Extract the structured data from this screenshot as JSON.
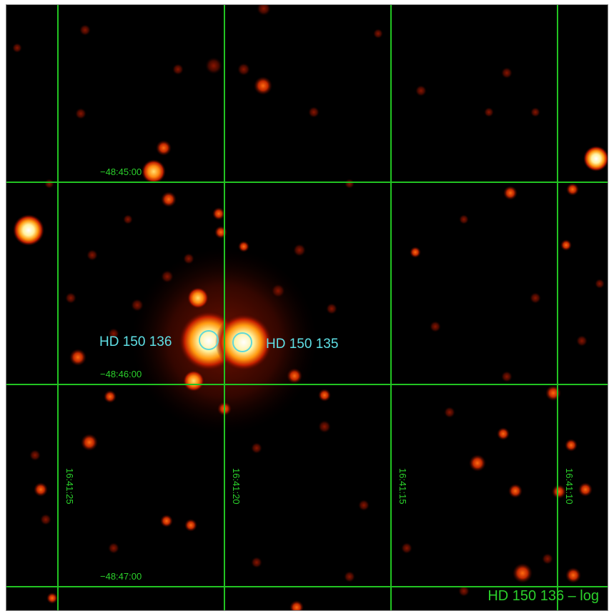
{
  "image": {
    "title": "HD 150 136 – log",
    "colormap": "heat",
    "grid_color": "#22c422",
    "label_color": "#5fe0e6"
  },
  "declination_labels": [
    "−48:45:00",
    "−48:46:00",
    "−48:47:00"
  ],
  "ra_labels": [
    "16:41:25",
    "16:41:20",
    "16:41:15",
    "16:41:10"
  ],
  "sources": [
    {
      "name": "HD 150 136"
    },
    {
      "name": "HD 150 135"
    }
  ]
}
